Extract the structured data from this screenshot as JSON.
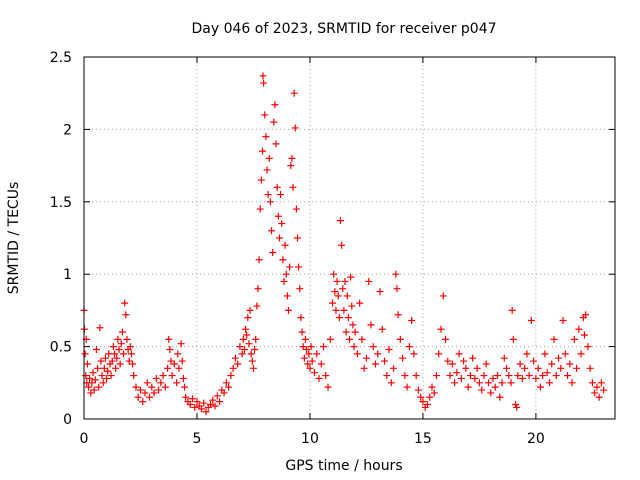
{
  "chart_data": {
    "type": "scatter",
    "title": "Day 046 of 2023, SRMTID for receiver p047",
    "xlabel": "GPS time / hours",
    "ylabel": "SRMTID / TECUs",
    "xlim": [
      0,
      23.5
    ],
    "ylim": [
      0,
      2.5
    ],
    "grid": true,
    "marker": "+",
    "marker_color": "#ff0000",
    "x_ticks": [
      0,
      5,
      10,
      15,
      20
    ],
    "x_tick_labels": [
      "0",
      "5",
      "10",
      "15",
      "20"
    ],
    "y_ticks": [
      0,
      0.5,
      1,
      1.5,
      2,
      2.5
    ],
    "y_tick_labels": [
      "0",
      "0.5",
      "1",
      "1.5",
      "2",
      "2.5"
    ],
    "series": [
      {
        "name": "SRMTID",
        "points": [
          [
            0.0,
            0.75
          ],
          [
            0.02,
            0.62
          ],
          [
            0.05,
            0.45
          ],
          [
            0.08,
            0.3
          ],
          [
            0.1,
            0.55
          ],
          [
            0.12,
            0.25
          ],
          [
            0.15,
            0.38
          ],
          [
            0.2,
            0.22
          ],
          [
            0.25,
            0.28
          ],
          [
            0.3,
            0.18
          ],
          [
            0.35,
            0.25
          ],
          [
            0.4,
            0.32
          ],
          [
            0.45,
            0.2
          ],
          [
            0.5,
            0.27
          ],
          [
            0.55,
            0.48
          ],
          [
            0.6,
            0.35
          ],
          [
            0.65,
            0.22
          ],
          [
            0.7,
            0.63
          ],
          [
            0.75,
            0.4
          ],
          [
            0.8,
            0.3
          ],
          [
            0.85,
            0.25
          ],
          [
            0.9,
            0.35
          ],
          [
            0.95,
            0.42
          ],
          [
            1.0,
            0.28
          ],
          [
            1.05,
            0.33
          ],
          [
            1.1,
            0.45
          ],
          [
            1.15,
            0.38
          ],
          [
            1.2,
            0.3
          ],
          [
            1.25,
            0.4
          ],
          [
            1.3,
            0.5
          ],
          [
            1.35,
            0.45
          ],
          [
            1.4,
            0.35
          ],
          [
            1.45,
            0.42
          ],
          [
            1.5,
            0.55
          ],
          [
            1.55,
            0.48
          ],
          [
            1.6,
            0.38
          ],
          [
            1.65,
            0.52
          ],
          [
            1.7,
            0.6
          ],
          [
            1.75,
            0.45
          ],
          [
            1.8,
            0.8
          ],
          [
            1.85,
            0.72
          ],
          [
            1.9,
            0.55
          ],
          [
            1.95,
            0.48
          ],
          [
            2.0,
            0.4
          ],
          [
            2.05,
            0.5
          ],
          [
            2.1,
            0.45
          ],
          [
            2.15,
            0.38
          ],
          [
            2.2,
            0.3
          ],
          [
            2.3,
            0.22
          ],
          [
            2.4,
            0.15
          ],
          [
            2.5,
            0.2
          ],
          [
            2.6,
            0.12
          ],
          [
            2.7,
            0.18
          ],
          [
            2.8,
            0.25
          ],
          [
            2.9,
            0.15
          ],
          [
            3.0,
            0.22
          ],
          [
            3.1,
            0.18
          ],
          [
            3.2,
            0.28
          ],
          [
            3.3,
            0.2
          ],
          [
            3.4,
            0.25
          ],
          [
            3.5,
            0.3
          ],
          [
            3.6,
            0.22
          ],
          [
            3.7,
            0.35
          ],
          [
            3.75,
            0.55
          ],
          [
            3.8,
            0.48
          ],
          [
            3.85,
            0.4
          ],
          [
            3.9,
            0.3
          ],
          [
            4.0,
            0.38
          ],
          [
            4.1,
            0.25
          ],
          [
            4.15,
            0.45
          ],
          [
            4.2,
            0.35
          ],
          [
            4.3,
            0.52
          ],
          [
            4.35,
            0.4
          ],
          [
            4.4,
            0.28
          ],
          [
            4.45,
            0.22
          ],
          [
            4.5,
            0.15
          ],
          [
            4.6,
            0.12
          ],
          [
            4.7,
            0.1
          ],
          [
            4.8,
            0.14
          ],
          [
            4.9,
            0.08
          ],
          [
            5.0,
            0.12
          ],
          [
            5.1,
            0.09
          ],
          [
            5.2,
            0.07
          ],
          [
            5.3,
            0.11
          ],
          [
            5.4,
            0.05
          ],
          [
            5.5,
            0.08
          ],
          [
            5.6,
            0.1
          ],
          [
            5.7,
            0.13
          ],
          [
            5.8,
            0.09
          ],
          [
            5.9,
            0.16
          ],
          [
            6.0,
            0.12
          ],
          [
            6.1,
            0.2
          ],
          [
            6.2,
            0.18
          ],
          [
            6.3,
            0.25
          ],
          [
            6.4,
            0.22
          ],
          [
            6.5,
            0.3
          ],
          [
            6.6,
            0.35
          ],
          [
            6.7,
            0.42
          ],
          [
            6.8,
            0.38
          ],
          [
            6.9,
            0.5
          ],
          [
            7.0,
            0.45
          ],
          [
            7.05,
            0.55
          ],
          [
            7.1,
            0.48
          ],
          [
            7.15,
            0.62
          ],
          [
            7.2,
            0.58
          ],
          [
            7.25,
            0.7
          ],
          [
            7.3,
            0.52
          ],
          [
            7.35,
            0.75
          ],
          [
            7.4,
            0.45
          ],
          [
            7.45,
            0.4
          ],
          [
            7.5,
            0.35
          ],
          [
            7.55,
            0.48
          ],
          [
            7.6,
            0.55
          ],
          [
            7.65,
            0.78
          ],
          [
            7.7,
            0.9
          ],
          [
            7.75,
            1.1
          ],
          [
            7.8,
            1.45
          ],
          [
            7.85,
            1.65
          ],
          [
            7.9,
            1.85
          ],
          [
            7.92,
            2.37
          ],
          [
            7.95,
            2.32
          ],
          [
            8.0,
            2.1
          ],
          [
            8.05,
            1.95
          ],
          [
            8.1,
            1.72
          ],
          [
            8.15,
            1.55
          ],
          [
            8.2,
            1.8
          ],
          [
            8.25,
            1.5
          ],
          [
            8.3,
            1.3
          ],
          [
            8.35,
            1.15
          ],
          [
            8.4,
            2.05
          ],
          [
            8.45,
            2.17
          ],
          [
            8.5,
            1.9
          ],
          [
            8.55,
            1.6
          ],
          [
            8.6,
            1.4
          ],
          [
            8.65,
            1.25
          ],
          [
            8.7,
            1.55
          ],
          [
            8.75,
            1.35
          ],
          [
            8.8,
            1.1
          ],
          [
            8.85,
            0.95
          ],
          [
            8.9,
            1.2
          ],
          [
            8.95,
            1.0
          ],
          [
            9.0,
            0.85
          ],
          [
            9.05,
            0.75
          ],
          [
            9.1,
            1.05
          ],
          [
            9.15,
            1.75
          ],
          [
            9.2,
            1.8
          ],
          [
            9.25,
            1.6
          ],
          [
            9.3,
            2.25
          ],
          [
            9.35,
            2.01
          ],
          [
            9.4,
            1.45
          ],
          [
            9.45,
            1.25
          ],
          [
            9.5,
            1.05
          ],
          [
            9.55,
            0.9
          ],
          [
            9.6,
            0.7
          ],
          [
            9.65,
            0.6
          ],
          [
            9.7,
            0.5
          ],
          [
            9.75,
            0.42
          ],
          [
            9.8,
            0.55
          ],
          [
            9.85,
            0.48
          ],
          [
            9.9,
            0.38
          ],
          [
            9.95,
            0.45
          ],
          [
            10.0,
            0.35
          ],
          [
            10.05,
            0.5
          ],
          [
            10.1,
            0.4
          ],
          [
            10.2,
            0.32
          ],
          [
            10.3,
            0.45
          ],
          [
            10.4,
            0.28
          ],
          [
            10.5,
            0.38
          ],
          [
            10.6,
            0.5
          ],
          [
            10.7,
            0.3
          ],
          [
            10.8,
            0.22
          ],
          [
            10.9,
            0.55
          ],
          [
            11.0,
            0.8
          ],
          [
            11.05,
            1.0
          ],
          [
            11.1,
            0.88
          ],
          [
            11.15,
            0.75
          ],
          [
            11.2,
            0.95
          ],
          [
            11.25,
            0.85
          ],
          [
            11.3,
            0.7
          ],
          [
            11.35,
            1.37
          ],
          [
            11.4,
            1.2
          ],
          [
            11.45,
            0.9
          ],
          [
            11.5,
            0.75
          ],
          [
            11.55,
            0.95
          ],
          [
            11.6,
            0.6
          ],
          [
            11.65,
            0.85
          ],
          [
            11.7,
            0.7
          ],
          [
            11.75,
            0.55
          ],
          [
            11.8,
            0.98
          ],
          [
            11.85,
            0.78
          ],
          [
            11.9,
            0.65
          ],
          [
            11.95,
            0.5
          ],
          [
            12.0,
            0.6
          ],
          [
            12.1,
            0.45
          ],
          [
            12.2,
            0.8
          ],
          [
            12.3,
            0.55
          ],
          [
            12.4,
            0.35
          ],
          [
            12.5,
            0.42
          ],
          [
            12.6,
            0.95
          ],
          [
            12.7,
            0.65
          ],
          [
            12.8,
            0.5
          ],
          [
            12.9,
            0.38
          ],
          [
            13.0,
            0.45
          ],
          [
            13.1,
            0.88
          ],
          [
            13.2,
            0.62
          ],
          [
            13.3,
            0.4
          ],
          [
            13.4,
            0.3
          ],
          [
            13.5,
            0.48
          ],
          [
            13.6,
            0.25
          ],
          [
            13.7,
            0.35
          ],
          [
            13.8,
            1.0
          ],
          [
            13.85,
            0.9
          ],
          [
            13.9,
            0.72
          ],
          [
            14.0,
            0.55
          ],
          [
            14.1,
            0.42
          ],
          [
            14.2,
            0.3
          ],
          [
            14.3,
            0.22
          ],
          [
            14.4,
            0.5
          ],
          [
            14.5,
            0.68
          ],
          [
            14.6,
            0.45
          ],
          [
            14.7,
            0.3
          ],
          [
            14.8,
            0.2
          ],
          [
            14.9,
            0.15
          ],
          [
            15.0,
            0.12
          ],
          [
            15.1,
            0.08
          ],
          [
            15.2,
            0.1
          ],
          [
            15.3,
            0.15
          ],
          [
            15.4,
            0.22
          ],
          [
            15.5,
            0.18
          ],
          [
            15.6,
            0.3
          ],
          [
            15.7,
            0.45
          ],
          [
            15.8,
            0.62
          ],
          [
            15.9,
            0.85
          ],
          [
            16.0,
            0.55
          ],
          [
            16.1,
            0.4
          ],
          [
            16.2,
            0.3
          ],
          [
            16.3,
            0.38
          ],
          [
            16.4,
            0.25
          ],
          [
            16.5,
            0.32
          ],
          [
            16.6,
            0.45
          ],
          [
            16.7,
            0.28
          ],
          [
            16.8,
            0.4
          ],
          [
            16.9,
            0.35
          ],
          [
            17.0,
            0.22
          ],
          [
            17.1,
            0.3
          ],
          [
            17.2,
            0.42
          ],
          [
            17.3,
            0.28
          ],
          [
            17.4,
            0.35
          ],
          [
            17.5,
            0.25
          ],
          [
            17.6,
            0.2
          ],
          [
            17.7,
            0.3
          ],
          [
            17.8,
            0.38
          ],
          [
            17.9,
            0.25
          ],
          [
            18.0,
            0.18
          ],
          [
            18.1,
            0.28
          ],
          [
            18.2,
            0.22
          ],
          [
            18.3,
            0.3
          ],
          [
            18.4,
            0.15
          ],
          [
            18.5,
            0.25
          ],
          [
            18.6,
            0.42
          ],
          [
            18.7,
            0.35
          ],
          [
            18.8,
            0.3
          ],
          [
            18.9,
            0.25
          ],
          [
            18.95,
            0.75
          ],
          [
            19.0,
            0.55
          ],
          [
            19.1,
            0.1
          ],
          [
            19.15,
            0.08
          ],
          [
            19.2,
            0.3
          ],
          [
            19.3,
            0.38
          ],
          [
            19.4,
            0.28
          ],
          [
            19.5,
            0.35
          ],
          [
            19.6,
            0.45
          ],
          [
            19.7,
            0.3
          ],
          [
            19.8,
            0.68
          ],
          [
            19.9,
            0.4
          ],
          [
            20.0,
            0.28
          ],
          [
            20.1,
            0.35
          ],
          [
            20.2,
            0.22
          ],
          [
            20.3,
            0.3
          ],
          [
            20.4,
            0.45
          ],
          [
            20.5,
            0.32
          ],
          [
            20.6,
            0.25
          ],
          [
            20.7,
            0.38
          ],
          [
            20.8,
            0.55
          ],
          [
            20.9,
            0.3
          ],
          [
            21.0,
            0.42
          ],
          [
            21.1,
            0.35
          ],
          [
            21.2,
            0.68
          ],
          [
            21.3,
            0.45
          ],
          [
            21.4,
            0.3
          ],
          [
            21.5,
            0.38
          ],
          [
            21.6,
            0.25
          ],
          [
            21.7,
            0.55
          ],
          [
            21.8,
            0.35
          ],
          [
            21.9,
            0.62
          ],
          [
            22.0,
            0.45
          ],
          [
            22.1,
            0.7
          ],
          [
            22.15,
            0.58
          ],
          [
            22.2,
            0.72
          ],
          [
            22.3,
            0.5
          ],
          [
            22.4,
            0.35
          ],
          [
            22.5,
            0.25
          ],
          [
            22.6,
            0.18
          ],
          [
            22.7,
            0.22
          ],
          [
            22.8,
            0.15
          ],
          [
            22.9,
            0.25
          ],
          [
            23.0,
            0.2
          ]
        ]
      }
    ]
  }
}
